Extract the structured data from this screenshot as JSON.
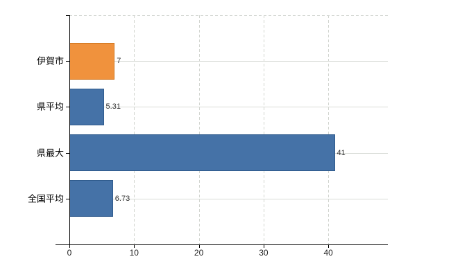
{
  "chart_data": {
    "type": "bar",
    "orientation": "horizontal",
    "title": "",
    "xlabel": "",
    "ylabel": "",
    "categories": [
      "伊賀市",
      "県平均",
      "県最大",
      "全国平均"
    ],
    "values": [
      7,
      5.31,
      41,
      6.73
    ],
    "value_labels": [
      "7",
      "5.31",
      "41",
      "6.73"
    ],
    "bar_fill_colors": [
      "#f0923d",
      "#4572a7",
      "#4572a7",
      "#4572a7"
    ],
    "bar_border_colors": [
      "#d0761f",
      "#2f5a8c",
      "#2f5a8c",
      "#2f5a8c"
    ],
    "x_ticks": [
      0,
      10,
      20,
      30,
      40
    ],
    "x_tick_labels": [
      "0",
      "10",
      "20",
      "30",
      "40"
    ],
    "x_min": 0,
    "x_max": 49.2,
    "grid": true,
    "legend": false,
    "gridline_color": "#d8dbd6",
    "axis_color": "#000000",
    "value_label_color": "#333333"
  }
}
